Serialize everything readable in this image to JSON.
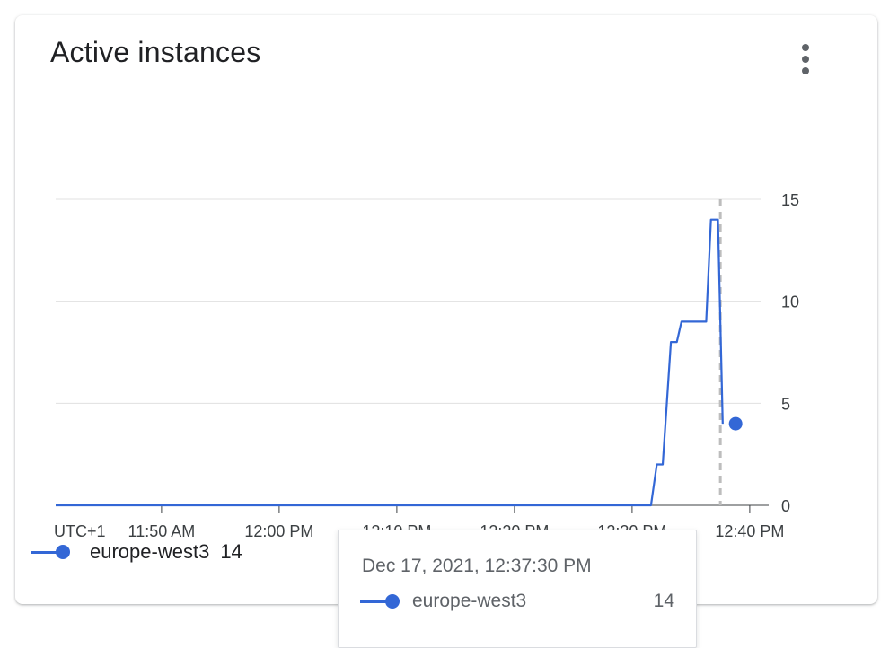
{
  "card": {
    "title": "Active instances",
    "menu_icon": "more-vert-icon"
  },
  "chart_data": {
    "type": "line",
    "title": "Active instances",
    "timezone_label": "UTC+1",
    "x_ticks": [
      "11:50 AM",
      "12:00 PM",
      "12:10 PM",
      "12:20 PM",
      "12:30 PM",
      "12:40 PM"
    ],
    "x_tick_minutes": [
      710,
      720,
      730,
      740,
      750,
      760
    ],
    "xlim_minutes": [
      701,
      761
    ],
    "y_ticks": [
      "0",
      "5",
      "10",
      "15"
    ],
    "ylim": [
      0,
      15
    ],
    "y_axis_side": "right",
    "grid": true,
    "series": [
      {
        "name": "europe-west3",
        "color": "#3367d6",
        "x_minutes": [
          701,
          751.6,
          752.1,
          752.6,
          753.3,
          753.8,
          754.2,
          754.7,
          756.3,
          756.7,
          757.3,
          757.7
        ],
        "values": [
          0,
          0,
          2,
          2,
          8,
          8,
          9,
          9,
          9,
          14,
          14,
          4
        ],
        "last_point": {
          "x_minutes": 758.8,
          "value": 4
        }
      }
    ],
    "hover": {
      "x_minutes": 757.5,
      "date": "Dec 17, 2021, 12:37:30 PM",
      "series_name": "europe-west3",
      "value": "14"
    }
  },
  "legend": {
    "series_name": "europe-west3",
    "value": "14"
  },
  "tooltip": {
    "date": "Dec 17, 2021, 12:37:30 PM",
    "series_name": "europe-west3",
    "value": "14"
  }
}
